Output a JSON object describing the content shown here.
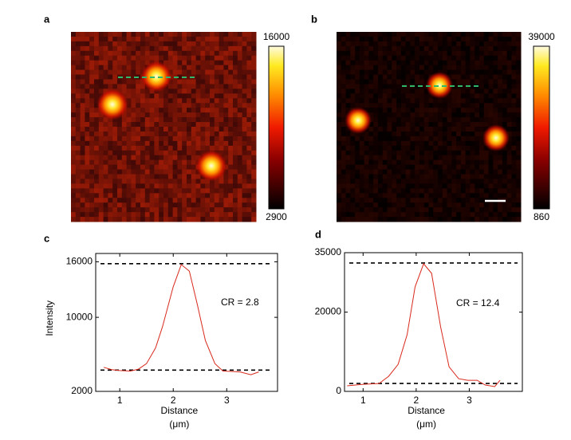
{
  "chart_data": [
    {
      "type": "image",
      "label": "a",
      "clim": [
        2900,
        16000
      ],
      "cticks": [
        2900,
        16000
      ]
    },
    {
      "type": "image",
      "label": "b",
      "clim": [
        860,
        39000
      ],
      "cticks": [
        860,
        39000
      ]
    },
    {
      "type": "line",
      "label": "c",
      "ylabel": "Intensity",
      "xlabel": [
        "Distance",
        "(μm)"
      ],
      "annotation": "CR = 2.8",
      "x": [
        0.7,
        0.85,
        1.0,
        1.2,
        1.35,
        1.5,
        1.67,
        1.8,
        2.0,
        2.15,
        2.3,
        2.45,
        2.6,
        2.78,
        2.93,
        3.1,
        3.25,
        3.45,
        3.6
      ],
      "series": [
        {
          "color": "#d9291c",
          "values": [
            4600,
            4350,
            4250,
            4200,
            4400,
            5000,
            6700,
            9000,
            13300,
            15700,
            15000,
            11400,
            7500,
            5000,
            4200,
            4150,
            4100,
            3800,
            4100
          ]
        }
      ],
      "hlines": [
        15800,
        4300
      ],
      "xlim": [
        0.55,
        3.95
      ],
      "xticks": [
        1,
        2,
        3
      ],
      "ylim": [
        2000,
        16900
      ],
      "yticks": [
        2000,
        10000,
        16000
      ]
    },
    {
      "type": "line",
      "label": "d",
      "xlabel": [
        "Distance",
        "(μm)"
      ],
      "annotation": "CR = 12.4",
      "x": [
        0.7,
        1.0,
        1.3,
        1.48,
        1.66,
        1.83,
        1.98,
        2.14,
        2.29,
        2.46,
        2.62,
        2.8,
        2.97,
        3.15,
        3.3,
        3.48,
        3.58
      ],
      "series": [
        {
          "color": "#d9291c",
          "values": [
            1400,
            1800,
            2000,
            3800,
            6800,
            14300,
            26400,
            32200,
            29800,
            16300,
            6200,
            3200,
            2800,
            2800,
            1600,
            1200,
            2800
          ]
        }
      ],
      "hlines": [
        32400,
        2000
      ],
      "xlim": [
        0.65,
        4.0
      ],
      "xticks": [
        1,
        2,
        3
      ],
      "ylim": [
        0,
        35000
      ],
      "yticks": [
        0,
        20000,
        35000
      ]
    }
  ]
}
